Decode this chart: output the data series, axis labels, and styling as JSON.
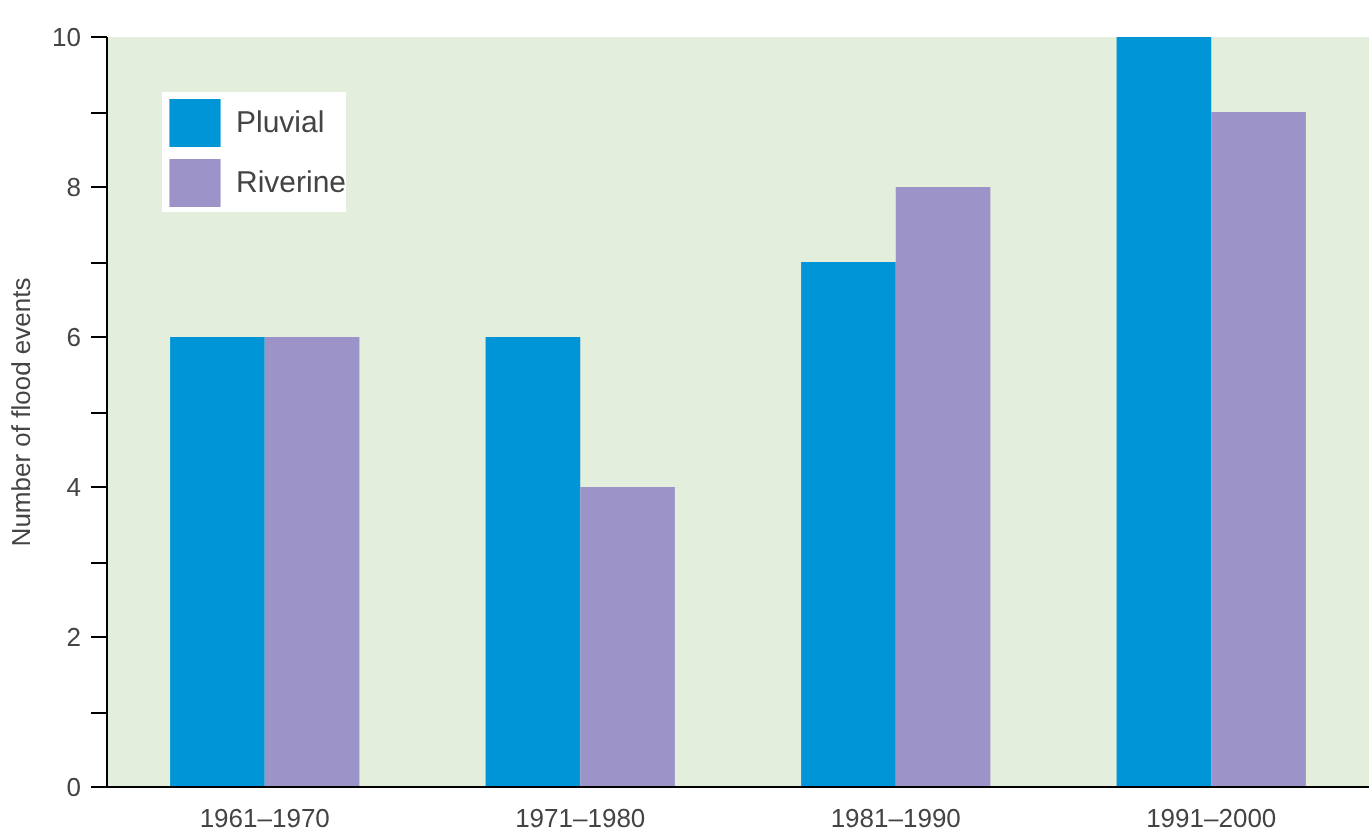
{
  "chart_data": {
    "type": "bar",
    "ylabel": "Number of flood events",
    "categories": [
      "1961–1970",
      "1971–1980",
      "1981–1990",
      "1991–2000"
    ],
    "series": [
      {
        "name": "Pluvial",
        "color": "#0095d6",
        "values": [
          6,
          6,
          7,
          10
        ]
      },
      {
        "name": "Riverine",
        "color": "#9c94c8",
        "values": [
          6,
          4,
          8,
          9
        ]
      }
    ],
    "ylim": [
      0,
      10
    ],
    "yticks": [
      0,
      {
        "value": 1,
        "label": null
      },
      2,
      {
        "value": 3,
        "label": null
      },
      4,
      {
        "value": 5,
        "label": null
      },
      6,
      {
        "value": 7,
        "label": null
      },
      8,
      {
        "value": 9,
        "label": null
      },
      10
    ],
    "legend": "top left"
  }
}
